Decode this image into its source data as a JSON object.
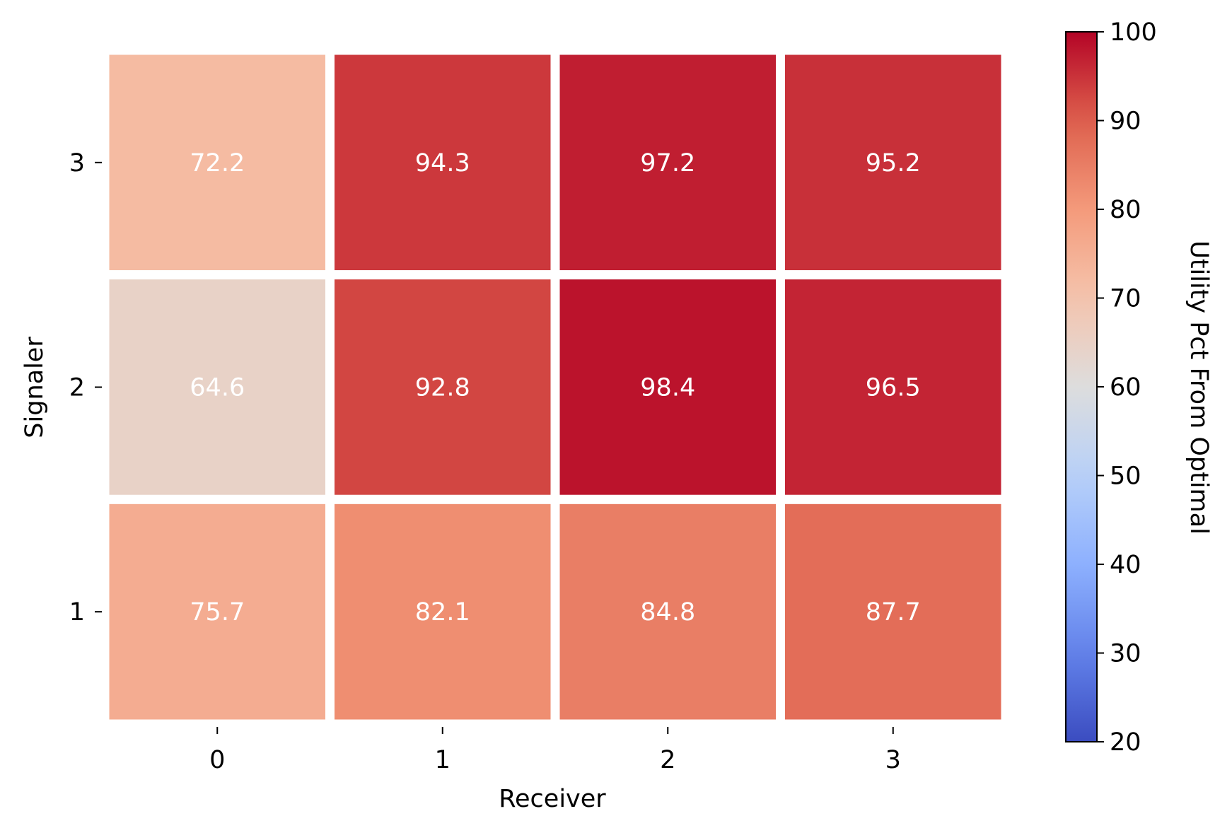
{
  "chart_data": {
    "type": "heatmap",
    "title": "",
    "xlabel": "Receiver",
    "ylabel": "Signaler",
    "x_categories": [
      "0",
      "1",
      "2",
      "3"
    ],
    "y_categories": [
      "3",
      "2",
      "1"
    ],
    "values": [
      [
        72.2,
        94.3,
        97.2,
        95.2
      ],
      [
        64.6,
        92.8,
        98.4,
        96.5
      ],
      [
        75.7,
        82.1,
        84.8,
        87.7
      ]
    ],
    "cell_labels": [
      [
        "72.2",
        "94.3",
        "97.2",
        "95.2"
      ],
      [
        "64.6",
        "92.8",
        "98.4",
        "96.5"
      ],
      [
        "75.7",
        "82.1",
        "84.8",
        "87.7"
      ]
    ],
    "colorbar": {
      "label": "Utility Pct From Optimal",
      "min": 20,
      "max": 100,
      "ticks": [
        "20",
        "30",
        "40",
        "50",
        "60",
        "70",
        "80",
        "90",
        "100"
      ],
      "colormap": "coolwarm"
    },
    "cell_text_color": "#ffffff",
    "cell_border_color": "#ffffff"
  }
}
